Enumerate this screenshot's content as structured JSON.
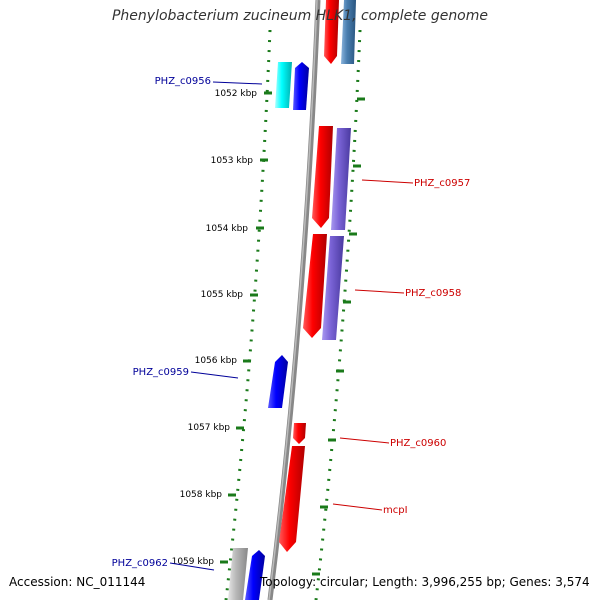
{
  "title": "Phenylobacterium zucineum HLK1, complete genome",
  "accession": "Accession: NC_011144",
  "topology": "Topology: circular; Length: 3,996,255 bp; Genes: 3,574",
  "ticks": [
    "1052 kbp",
    "1053 kbp",
    "1054 kbp",
    "1055 kbp",
    "1056 kbp",
    "1057 kbp",
    "1058 kbp",
    "1059 kbp"
  ],
  "genes_left": [
    "PHZ_c0956",
    "PHZ_c0959",
    "PHZ_c0962"
  ],
  "genes_right": [
    "PHZ_c0957",
    "PHZ_c0958",
    "PHZ_c0960",
    "mcpI"
  ],
  "colors": {
    "forward_red": "#ff0000",
    "reverse_blue": "#0000ff",
    "cyan": "#00ffff",
    "purple": "#7a63d6",
    "steel": "#4a7fb0",
    "gray": "#b8b8b8",
    "tick_green": "#1a7a1a",
    "label_blue": "#000099",
    "label_red": "#cc0000"
  }
}
